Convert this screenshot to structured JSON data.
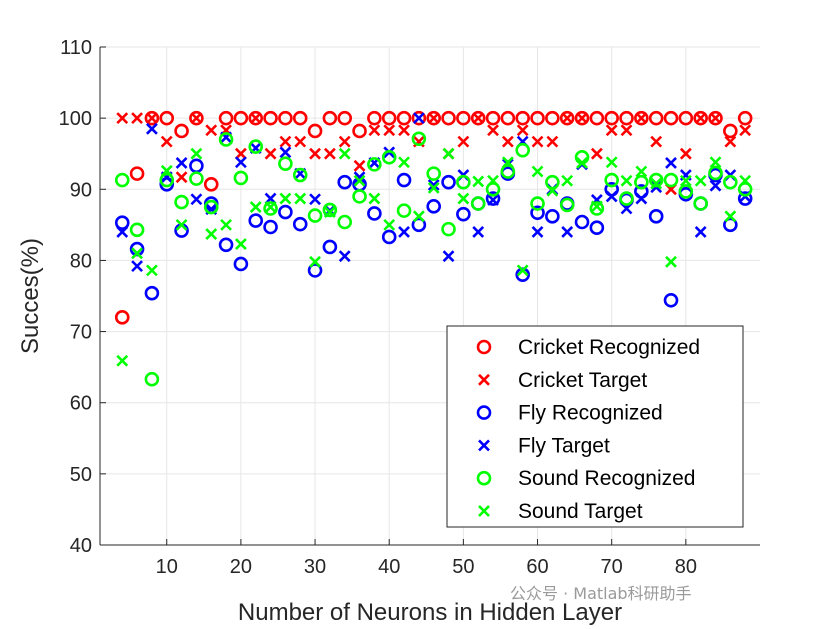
{
  "chart_data": {
    "type": "scatter",
    "xlabel": "Number of Neurons in Hidden Layer",
    "ylabel": "Succes(%)",
    "xlim": [
      1,
      90
    ],
    "ylim": [
      40,
      110
    ],
    "xticks": [
      10,
      20,
      30,
      40,
      50,
      60,
      70,
      80
    ],
    "yticks": [
      40,
      50,
      60,
      70,
      80,
      90,
      100,
      110
    ],
    "grid": true,
    "legend_placement": "bottom-right",
    "x": [
      4,
      6,
      8,
      10,
      12,
      14,
      16,
      18,
      20,
      22,
      24,
      26,
      28,
      30,
      32,
      34,
      36,
      38,
      40,
      42,
      44,
      46,
      48,
      50,
      52,
      54,
      56,
      58,
      60,
      62,
      64,
      66,
      68,
      70,
      72,
      74,
      76,
      78,
      80,
      82,
      84,
      86,
      88
    ],
    "series": [
      {
        "name": "Cricket Recognized",
        "marker": "o",
        "color": "#ff0000",
        "values": [
          72,
          92.2,
          100,
          100,
          98.2,
          100,
          90.7,
          100,
          100,
          100,
          100,
          100,
          100,
          98.2,
          100,
          100,
          98.2,
          100,
          100,
          100,
          100,
          100,
          100,
          100,
          100,
          100,
          100,
          100,
          100,
          100,
          100,
          100,
          100,
          100,
          100,
          100,
          100,
          100,
          100,
          100,
          100,
          98.2,
          100
        ]
      },
      {
        "name": "Cricket Target",
        "marker": "x",
        "color": "#ff0000",
        "values": [
          100,
          100,
          100,
          96.7,
          91.7,
          100,
          98.3,
          98.3,
          95,
          100,
          95,
          96.7,
          96.7,
          95,
          95,
          96.7,
          93.3,
          98.3,
          98.3,
          98.3,
          96.7,
          100,
          95,
          96.7,
          100,
          98.3,
          96.7,
          98.3,
          96.7,
          96.7,
          100,
          100,
          95,
          98.3,
          98.3,
          100,
          96.7,
          90,
          95,
          100,
          100,
          96.7,
          98.3
        ]
      },
      {
        "name": "Fly Recognized",
        "marker": "o",
        "color": "#0000ff",
        "values": [
          85.3,
          81.6,
          75.4,
          90.7,
          84.2,
          93.3,
          88,
          82.2,
          79.5,
          85.6,
          84.7,
          86.8,
          85.1,
          78.6,
          81.9,
          91,
          90.7,
          86.6,
          83.3,
          91.3,
          85,
          87.6,
          91,
          86.5,
          88,
          88.7,
          92.2,
          78,
          86.7,
          86.2,
          88,
          85.4,
          84.6,
          90,
          88.5,
          89.7,
          86.2,
          74.4,
          89.3,
          88,
          92,
          85,
          88.7
        ]
      },
      {
        "name": "Fly Target",
        "marker": "x",
        "color": "#0000ff",
        "values": [
          84,
          79.2,
          98.5,
          91.7,
          93.7,
          88.6,
          87.2,
          97.3,
          93.8,
          95.8,
          88.7,
          95.2,
          92.2,
          88.6,
          87,
          80.6,
          91.7,
          93.7,
          95.2,
          84,
          100,
          90.6,
          80.6,
          92,
          84,
          88.5,
          93.5,
          96.7,
          84,
          90,
          84,
          93.5,
          88.5,
          89,
          87.3,
          88.7,
          90.3,
          93.7,
          92,
          84,
          90.5,
          92,
          89
        ]
      },
      {
        "name": "Sound Recognized",
        "marker": "o",
        "color": "#00ff00",
        "values": [
          91.3,
          84.3,
          63.3,
          91.3,
          88.2,
          91.5,
          87.5,
          97,
          91.6,
          96,
          87.3,
          93.6,
          92,
          86.3,
          87.1,
          85.4,
          89,
          93.5,
          94.5,
          87,
          97.1,
          92.2,
          84.4,
          91,
          88,
          90,
          92.5,
          95.5,
          88,
          91,
          87.8,
          94.5,
          87.3,
          91.3,
          88.7,
          91,
          91.3,
          91.3,
          89.7,
          88,
          92.3,
          91,
          90
        ]
      },
      {
        "name": "Sound Target",
        "marker": "x",
        "color": "#00ff00",
        "values": [
          65.9,
          81,
          78.6,
          92.6,
          85,
          95,
          83.7,
          85,
          82.3,
          87.5,
          87.5,
          88.7,
          88.7,
          79.8,
          86.8,
          95,
          91.2,
          88.7,
          85,
          93.8,
          86.2,
          90.2,
          95,
          88.7,
          91.1,
          91.2,
          93.8,
          78.6,
          92.5,
          89.8,
          91.2,
          93.7,
          87.6,
          93.8,
          91.2,
          92.5,
          90.8,
          79.8,
          91.2,
          91.2,
          93.8,
          86.2,
          91.2
        ]
      }
    ]
  },
  "watermark": "公众号 · Matlab科研助手"
}
